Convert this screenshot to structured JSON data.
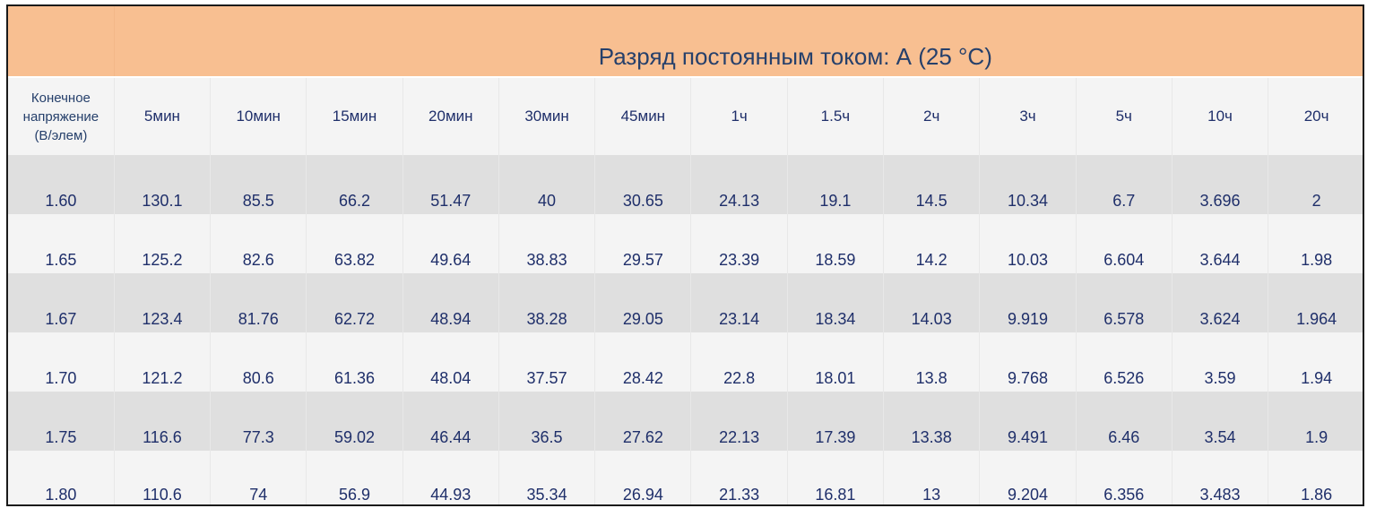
{
  "title": "Разряд постоянным током: А (25 °C)",
  "header": {
    "corner_line1": "Конечное",
    "corner_line2": "напряжение",
    "corner_line3": "(В/элем)",
    "columns": [
      "5мин",
      "10мин",
      "15мин",
      "20мин",
      "30мин",
      "45мин",
      "1ч",
      "1.5ч",
      "2ч",
      "3ч",
      "5ч",
      "10ч",
      "20ч"
    ]
  },
  "rows": [
    {
      "voltage": "1.60",
      "values": [
        "130.1",
        "85.5",
        "66.2",
        "51.47",
        "40",
        "30.65",
        "24.13",
        "19.1",
        "14.5",
        "10.34",
        "6.7",
        "3.696",
        "2"
      ]
    },
    {
      "voltage": "1.65",
      "values": [
        "125.2",
        "82.6",
        "63.82",
        "49.64",
        "38.83",
        "29.57",
        "23.39",
        "18.59",
        "14.2",
        "10.03",
        "6.604",
        "3.644",
        "1.98"
      ]
    },
    {
      "voltage": "1.67",
      "values": [
        "123.4",
        "81.76",
        "62.72",
        "48.94",
        "38.28",
        "29.05",
        "23.14",
        "18.34",
        "14.03",
        "9.919",
        "6.578",
        "3.624",
        "1.964"
      ]
    },
    {
      "voltage": "1.70",
      "values": [
        "121.2",
        "80.6",
        "61.36",
        "48.04",
        "37.57",
        "28.42",
        "22.8",
        "18.01",
        "13.8",
        "9.768",
        "6.526",
        "3.59",
        "1.94"
      ]
    },
    {
      "voltage": "1.75",
      "values": [
        "116.6",
        "77.3",
        "59.02",
        "46.44",
        "36.5",
        "27.62",
        "22.13",
        "17.39",
        "13.38",
        "9.491",
        "6.46",
        "3.54",
        "1.9"
      ]
    },
    {
      "voltage": "1.80",
      "values": [
        "110.6",
        "74",
        "56.9",
        "44.93",
        "35.34",
        "26.94",
        "21.33",
        "16.81",
        "13",
        "9.204",
        "6.356",
        "3.483",
        "1.86"
      ]
    }
  ]
}
